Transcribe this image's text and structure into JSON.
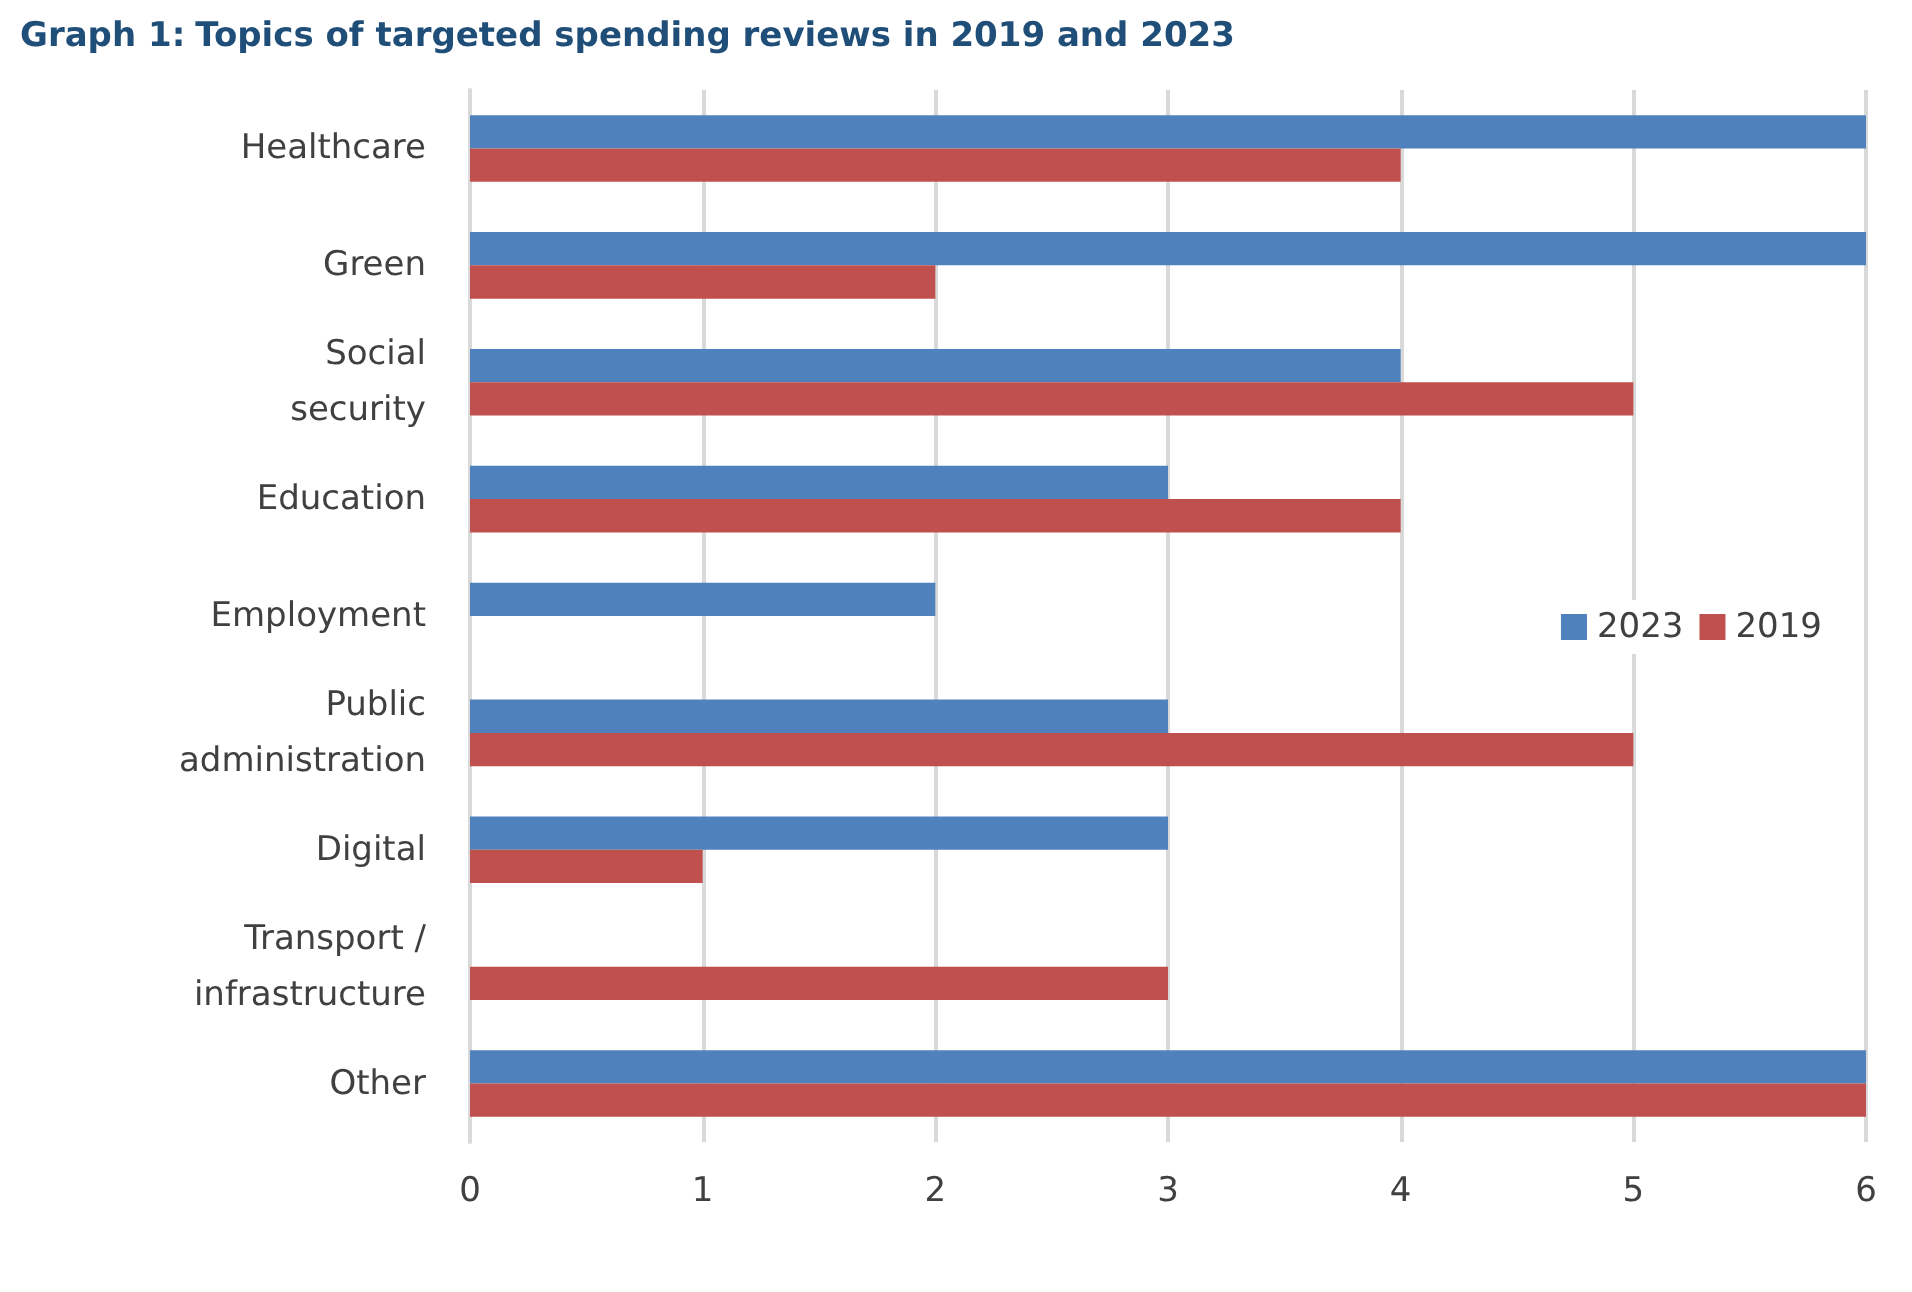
{
  "chart_data": {
    "type": "bar",
    "orientation": "horizontal",
    "title": "Graph 1: Topics of targeted spending reviews in 2019 and 2023",
    "categories": [
      "Healthcare",
      "Green",
      "Social\nsecurity",
      "Education",
      "Employment",
      "Public\nadministration",
      "Digital",
      "Transport /\ninfrastructure",
      "Other"
    ],
    "series": [
      {
        "name": "2023",
        "color": "#4f81bd",
        "values": [
          6,
          6,
          4,
          3,
          2,
          3,
          3,
          0,
          6
        ]
      },
      {
        "name": "2019",
        "color": "#c0504d",
        "values": [
          4,
          2,
          5,
          4,
          0,
          5,
          1,
          3,
          6
        ]
      }
    ],
    "xlim": [
      0,
      6
    ],
    "xticks": [
      0,
      1,
      2,
      3,
      4,
      5,
      6
    ],
    "grid": "x",
    "legend": "right"
  }
}
